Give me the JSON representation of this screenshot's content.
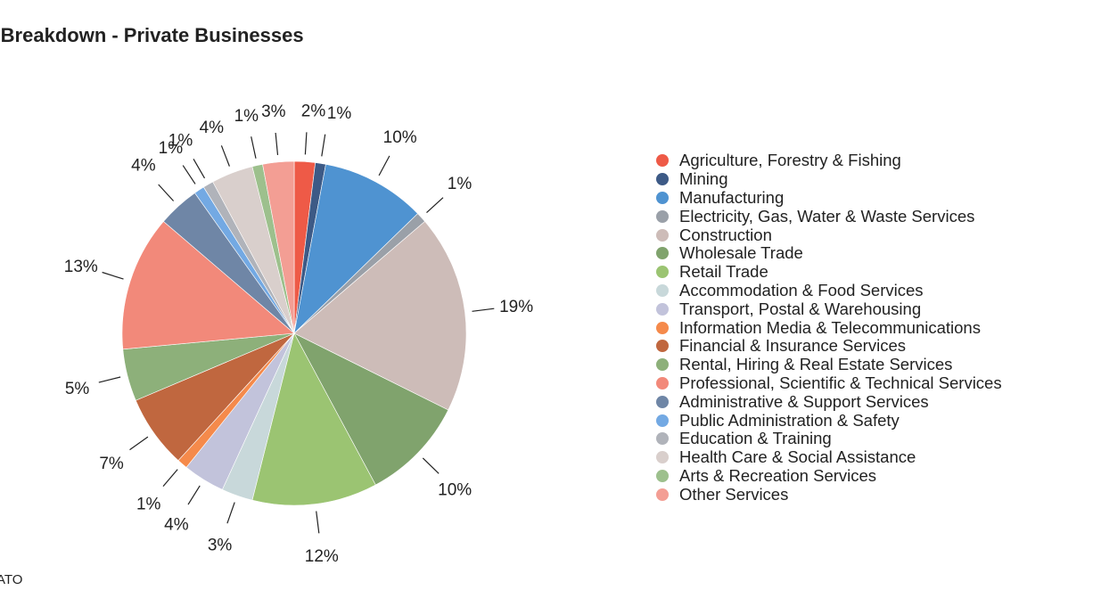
{
  "chart_title": "r Breakdown - Private Businesses",
  "source": "ATO",
  "chart_data": {
    "type": "pie",
    "title": "r Breakdown - Private Businesses",
    "legend_position": "right",
    "slices": [
      {
        "label": "Agriculture, Forestry & Fishing",
        "value": 2,
        "display": "2%",
        "color": "#ee5a47"
      },
      {
        "label": "Mining",
        "value": 1,
        "display": "1%",
        "color": "#3d5a86"
      },
      {
        "label": "Manufacturing",
        "value": 10,
        "display": "10%",
        "color": "#4f93d1"
      },
      {
        "label": "Electricity, Gas, Water & Waste Services",
        "value": 1,
        "display": "1%",
        "color": "#9aa0a8"
      },
      {
        "label": "Construction",
        "value": 19,
        "display": "19%",
        "color": "#cdbcb8"
      },
      {
        "label": "Wholesale Trade",
        "value": 10,
        "display": "10%",
        "color": "#80a36d"
      },
      {
        "label": "Retail Trade",
        "value": 12,
        "display": "12%",
        "color": "#9bc472"
      },
      {
        "label": "Accommodation & Food Services",
        "value": 3,
        "display": "3%",
        "color": "#c8d8da"
      },
      {
        "label": "Transport, Postal & Warehousing",
        "value": 4,
        "display": "4%",
        "color": "#c2c3db"
      },
      {
        "label": "Information Media & Telecommunications",
        "value": 1,
        "display": "1%",
        "color": "#f58a4b"
      },
      {
        "label": "Financial & Insurance Services",
        "value": 7,
        "display": "7%",
        "color": "#c0673f"
      },
      {
        "label": "Rental, Hiring & Real Estate Services",
        "value": 5,
        "display": "5%",
        "color": "#8db07a"
      },
      {
        "label": "Professional, Scientific & Technical Services",
        "value": 13,
        "display": "13%",
        "color": "#f2897a"
      },
      {
        "label": "Administrative & Support Services",
        "value": 4,
        "display": "4%",
        "color": "#6f86a6"
      },
      {
        "label": "Public Administration & Safety",
        "value": 1,
        "display": "1%",
        "color": "#73a9e3"
      },
      {
        "label": "Education & Training",
        "value": 1,
        "display": "1%",
        "color": "#b0b3ba"
      },
      {
        "label": "Health Care & Social Assistance",
        "value": 4,
        "display": "4%",
        "color": "#d9cfcc"
      },
      {
        "label": "Arts & Recreation Services",
        "value": 1,
        "display": "1%",
        "color": "#9dc08d"
      },
      {
        "label": "Other Services",
        "value": 3,
        "display": "3%",
        "color": "#f39e94"
      }
    ]
  }
}
